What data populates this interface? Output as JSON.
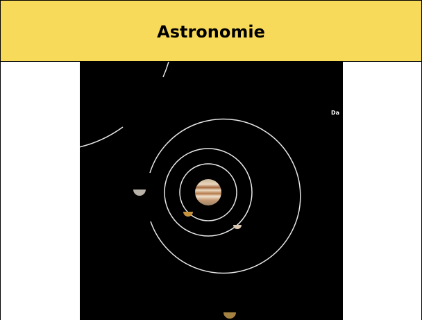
{
  "header": {
    "title": "Astronomie"
  },
  "image": {
    "label": "Da"
  }
}
